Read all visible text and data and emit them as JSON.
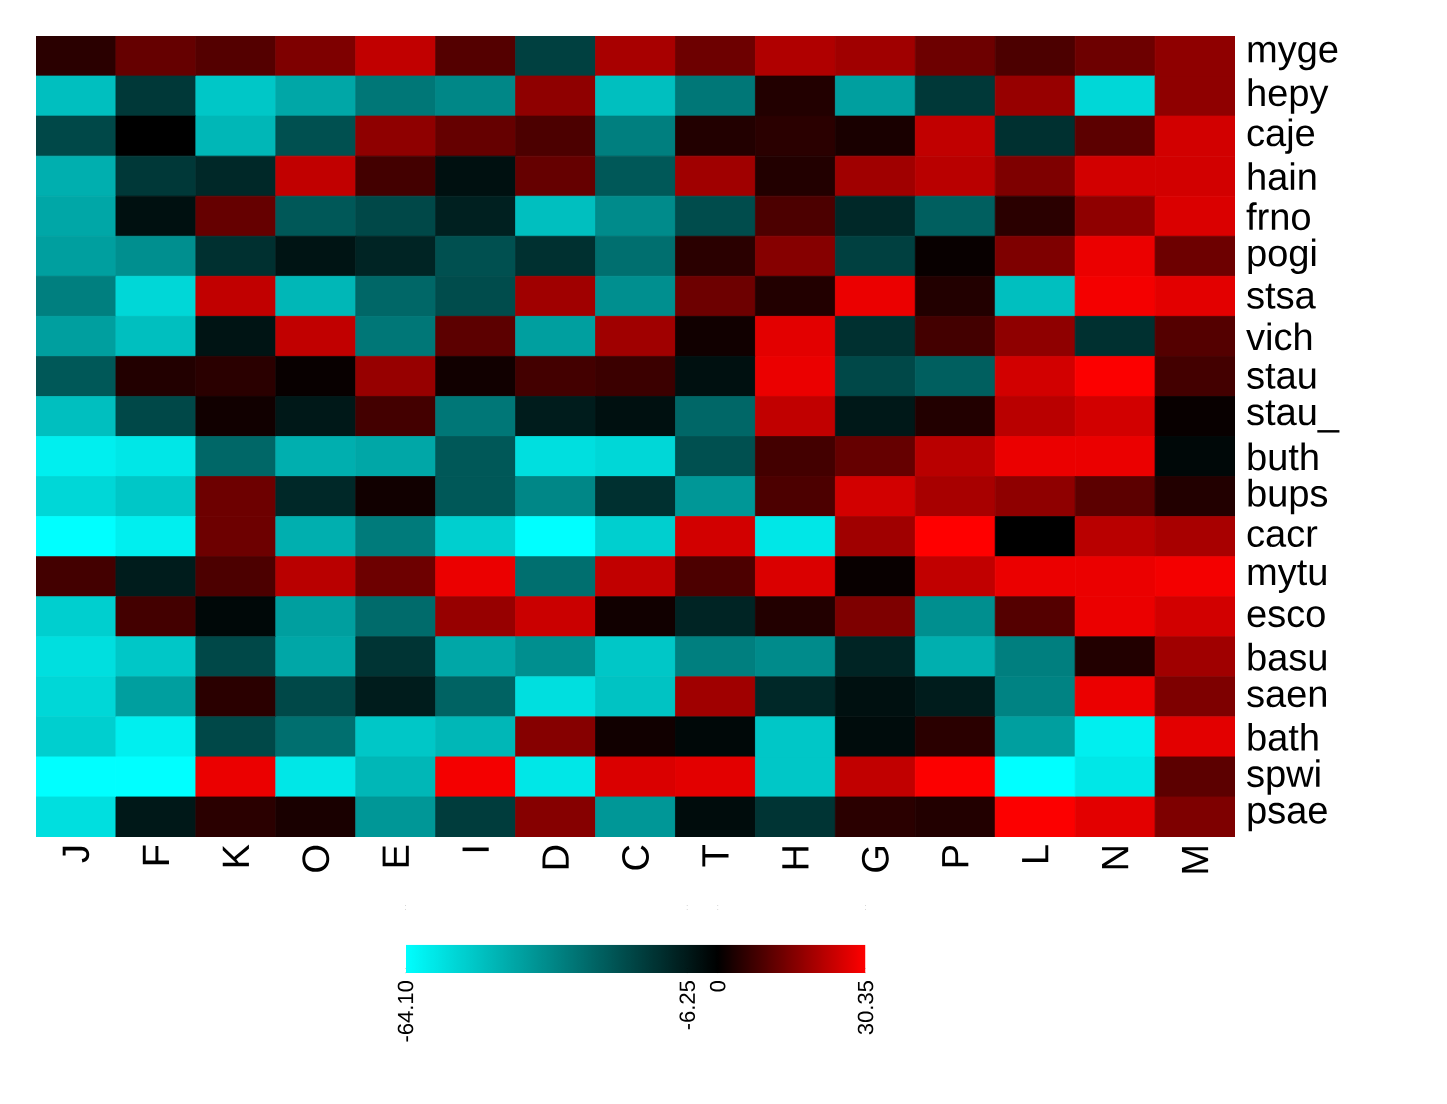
{
  "chart_data": {
    "type": "heatmap",
    "categories": [
      "J",
      "F",
      "K",
      "O",
      "E",
      "I",
      "D",
      "C",
      "T",
      "H",
      "G",
      "P",
      "L",
      "N",
      "M"
    ],
    "y_categories": [
      "myge",
      "hepy",
      "caje",
      "hain",
      "frno",
      "pogi",
      "stsa",
      "vich",
      "stau",
      "stau_",
      "buth",
      "bups",
      "cacr",
      "mytu",
      "esco",
      "basu",
      "saen",
      "bath",
      "spwi",
      "psae"
    ],
    "cells": [
      [
        5,
        12,
        10,
        15,
        23,
        10,
        -16,
        20,
        13,
        21,
        19,
        13,
        9,
        13,
        17
      ],
      [
        -48,
        -14,
        -50,
        -42,
        -30,
        -34,
        17,
        -48,
        -30,
        4,
        -40,
        -14,
        18,
        -54,
        17
      ],
      [
        -18,
        0,
        -46,
        -20,
        17,
        12,
        9,
        -32,
        4,
        5,
        3,
        23,
        -12,
        11,
        25
      ],
      [
        -44,
        -14,
        -10,
        23,
        8,
        -4,
        12,
        -22,
        19,
        4,
        19,
        22,
        15,
        25,
        25
      ],
      [
        -42,
        -4,
        12,
        -22,
        -18,
        -8,
        -48,
        -35,
        -19,
        9,
        -10,
        -24,
        5,
        17,
        26
      ],
      [
        -40,
        -36,
        -12,
        -5,
        -9,
        -20,
        -12,
        -28,
        5,
        16,
        -16,
        1,
        15,
        28,
        13
      ],
      [
        -32,
        -54,
        23,
        -46,
        -26,
        -19,
        19,
        -36,
        13,
        4,
        28,
        4,
        -48,
        29,
        27
      ],
      [
        -40,
        -48,
        -5,
        23,
        -30,
        11,
        -40,
        19,
        2,
        27,
        -12,
        8,
        17,
        -12,
        10
      ],
      [
        -22,
        4,
        5,
        1,
        18,
        2,
        8,
        7,
        -4,
        28,
        -18,
        -24,
        25,
        30,
        8
      ],
      [
        -48,
        -18,
        2,
        -6,
        8,
        -30,
        -7,
        -4,
        -26,
        23,
        -6,
        4,
        22,
        25,
        1
      ],
      [
        -60,
        -58,
        -26,
        -44,
        -42,
        -22,
        -56,
        -54,
        -20,
        8,
        12,
        22,
        28,
        28,
        -2
      ],
      [
        -54,
        -50,
        13,
        -10,
        2,
        -22,
        -34,
        -12,
        -38,
        9,
        25,
        20,
        17,
        11,
        4
      ],
      [
        -64,
        -60,
        13,
        -44,
        -31,
        -52,
        -64.1,
        -52,
        25,
        -58,
        19,
        30.35,
        0,
        22,
        20
      ],
      [
        8,
        -7,
        9,
        22,
        13,
        28,
        -28,
        23,
        9,
        26,
        1,
        23,
        28,
        28,
        29
      ],
      [
        -52,
        8,
        -2,
        -40,
        -27,
        18,
        24,
        2,
        -9,
        4,
        15,
        -36,
        10,
        28,
        25
      ],
      [
        -56,
        -50,
        -18,
        -42,
        -13,
        -42,
        -36,
        -50,
        -32,
        -35,
        -9,
        -44,
        -32,
        4,
        19
      ],
      [
        -54,
        -40,
        5,
        -18,
        -7,
        -25,
        -56,
        -49,
        19,
        -10,
        -4,
        -7,
        -33,
        28,
        15
      ],
      [
        -52,
        -60,
        -18,
        -28,
        -50,
        -46,
        16,
        2,
        -2,
        -50,
        -3,
        5,
        -40,
        -60,
        27
      ],
      [
        -64,
        -64,
        28,
        -58,
        -46,
        29,
        -58,
        26,
        27,
        -50,
        23,
        30,
        -64,
        -58,
        11
      ],
      [
        -56,
        -6,
        5,
        3,
        -38,
        -15,
        16,
        -38,
        -3,
        -13,
        5,
        4,
        30,
        27,
        15
      ]
    ],
    "clim": [
      -64.1,
      30.35
    ],
    "cticks": [
      {
        "value": -64.1,
        "label": "-64.10"
      },
      -6.25,
      0,
      30.35
    ]
  }
}
